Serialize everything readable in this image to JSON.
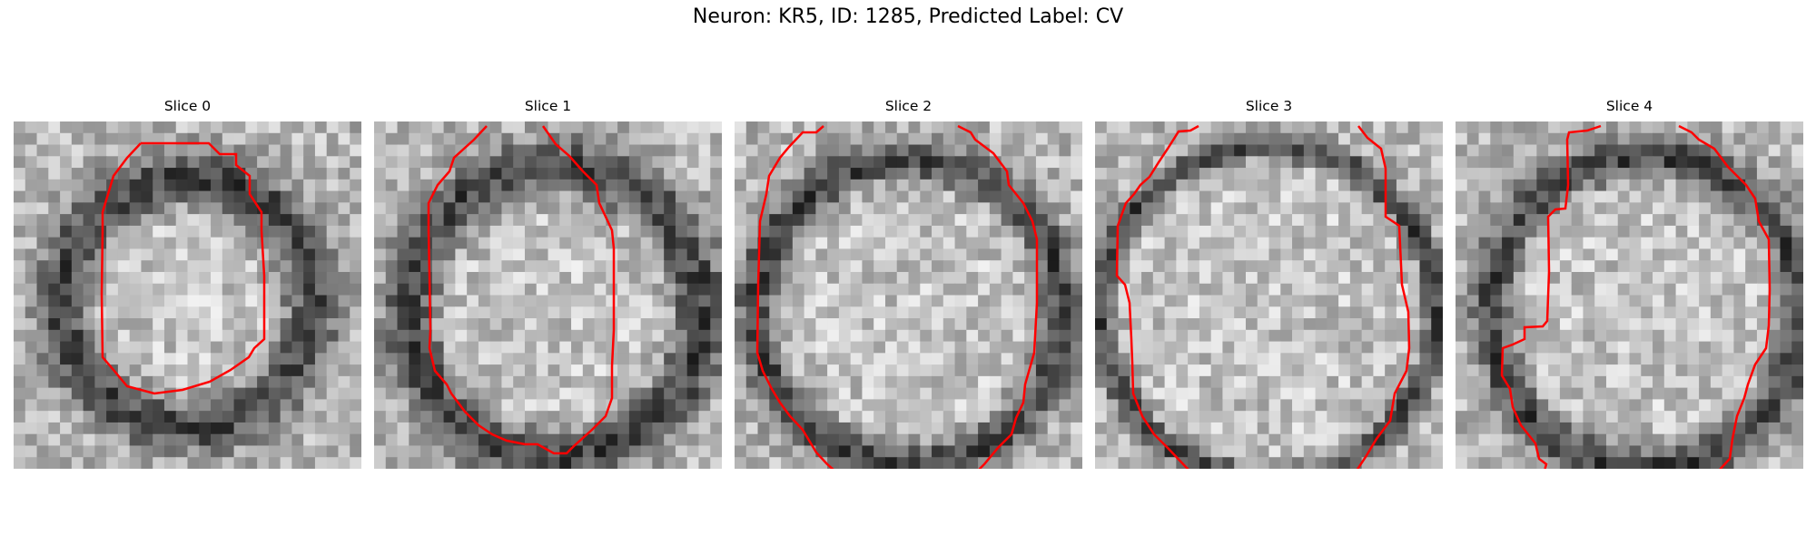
{
  "figure": {
    "title": "Neuron: KR5, ID: 1285, Predicted Label: CV"
  },
  "panels": [
    {
      "title": "Slice 0"
    },
    {
      "title": "Slice 1"
    },
    {
      "title": "Slice 2"
    },
    {
      "title": "Slice 3"
    },
    {
      "title": "Slice 4"
    }
  ],
  "colors": {
    "contour": "#ff0000"
  }
}
